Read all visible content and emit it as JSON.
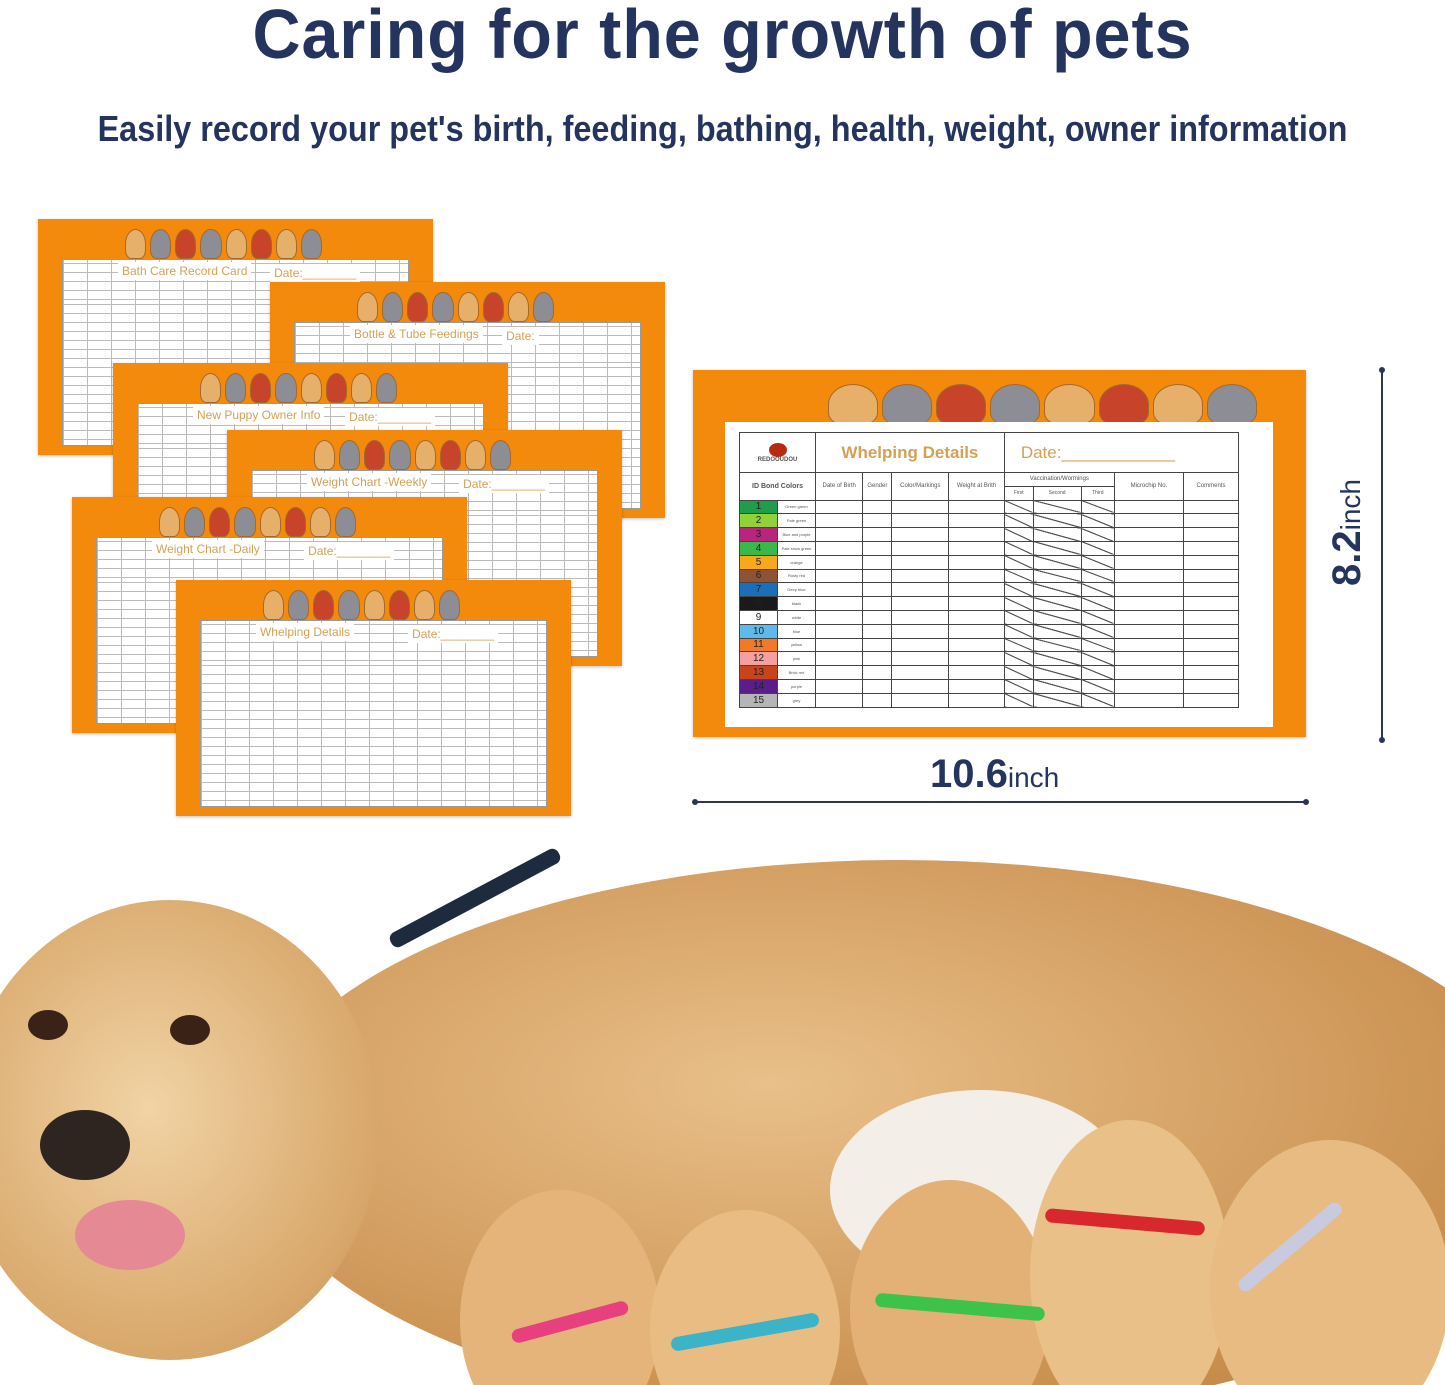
{
  "header": {
    "title": "Caring for the growth of pets",
    "subtitle": "Easily record your pet's birth, feeding, bathing, health, weight, owner information"
  },
  "brand": "REDOOUDOU",
  "cards": [
    {
      "title": "Bath Care Record Card",
      "date": "Date:________"
    },
    {
      "title": "Bottle & Tube Feedings",
      "date": "Date:"
    },
    {
      "title": "New Puppy Owner Info",
      "date": "Date:________"
    },
    {
      "title": "Weight Chart -Weekly",
      "date": "Date:________"
    },
    {
      "title": "Weight Chart -Daily",
      "date": "Date:________"
    },
    {
      "title": "Whelping Details",
      "date": "Date:________"
    }
  ],
  "card_color": "#f48a0c",
  "feature_card": {
    "title": "Whelping Details",
    "date": "Date:____________",
    "columns": [
      "ID Bond Colors",
      "Date of Birth",
      "Gender",
      "Color/Markings",
      "Weight at Brith",
      "Vaccination/Wormings",
      "Microchip No.",
      "Comments"
    ],
    "sub_columns": [
      "First",
      "Second",
      "Third"
    ],
    "bands": [
      {
        "n": "1",
        "name": "Green green",
        "color": "#1e9e4a"
      },
      {
        "n": "2",
        "name": "Pale green",
        "color": "#8fd23a"
      },
      {
        "n": "3",
        "name": "Blue and purple",
        "color": "#b8257e"
      },
      {
        "n": "4",
        "name": "Pale snow green",
        "color": "#3cb84a"
      },
      {
        "n": "5",
        "name": "orange",
        "color": "#f7a81b"
      },
      {
        "n": "6",
        "name": "Rusty red",
        "color": "#8e5234"
      },
      {
        "n": "7",
        "name": "Deep blue",
        "color": "#1b6fb8"
      },
      {
        "n": "8",
        "name": "black",
        "color": "#1a1a1a"
      },
      {
        "n": "9",
        "name": "white",
        "color": "#ffffff"
      },
      {
        "n": "10",
        "name": "blue",
        "color": "#5fb9ec"
      },
      {
        "n": "11",
        "name": "yellow",
        "color": "#f07a2a"
      },
      {
        "n": "12",
        "name": "pink",
        "color": "#f4a0a0"
      },
      {
        "n": "13",
        "name": "Brick red",
        "color": "#c8441c"
      },
      {
        "n": "14",
        "name": "purple",
        "color": "#5a1d8c"
      },
      {
        "n": "15",
        "name": "grey",
        "color": "#b5b5b5"
      }
    ]
  },
  "dimensions": {
    "width_value": "10.6",
    "height_value": "8.2",
    "unit": "inch"
  }
}
